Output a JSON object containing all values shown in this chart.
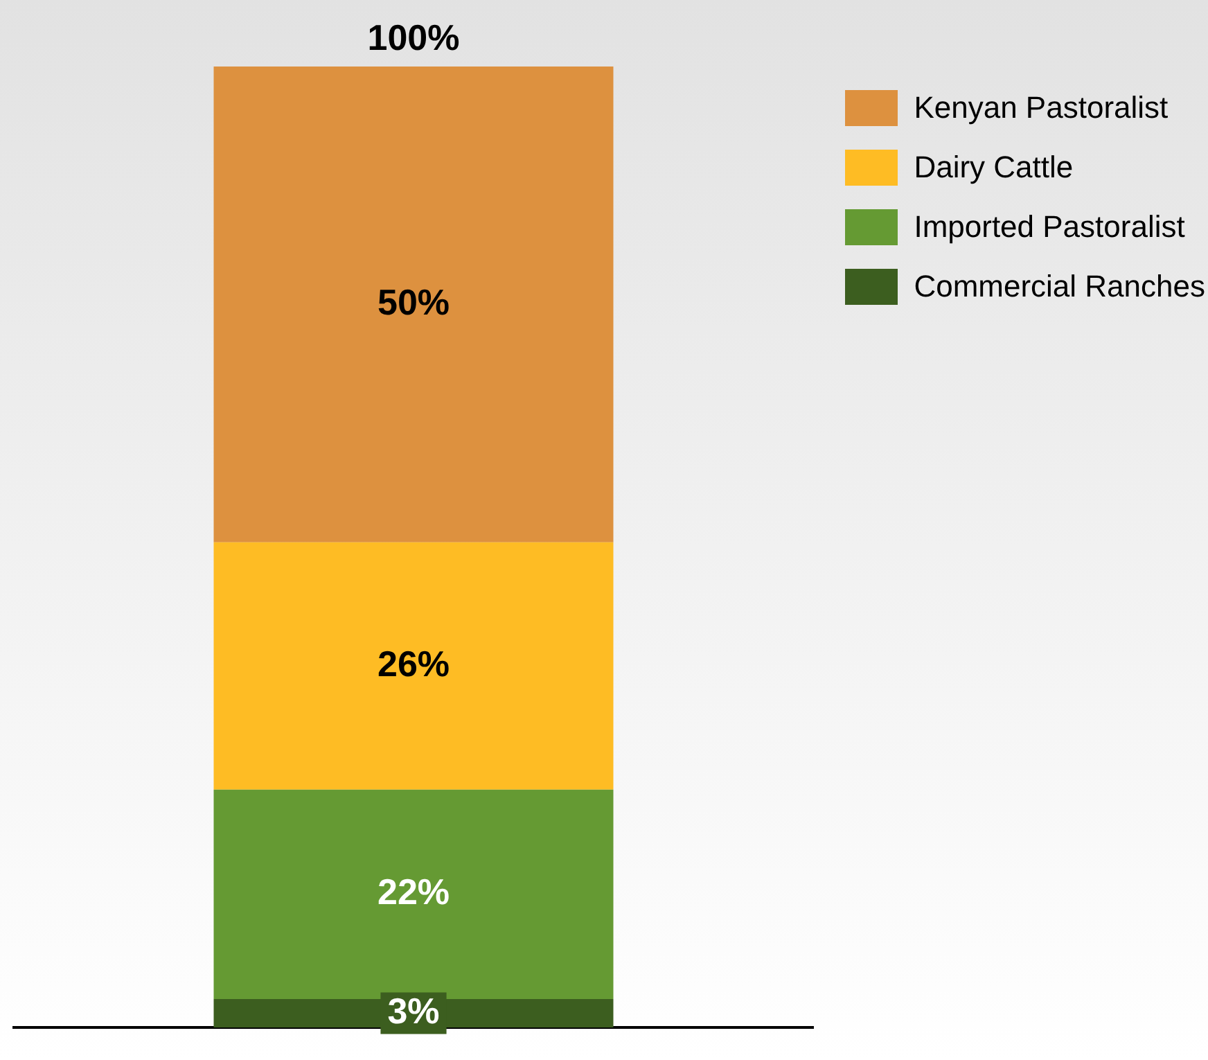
{
  "chart_data": {
    "type": "bar",
    "stacked": true,
    "categories": [
      null
    ],
    "series": [
      {
        "name": "Commercial Ranches",
        "color": "#3c5e1f",
        "values": [
          3
        ],
        "value_labels": [
          "3%"
        ]
      },
      {
        "name": "Imported Pastoralist",
        "color": "#659a33",
        "values": [
          22
        ],
        "value_labels": [
          "22%"
        ]
      },
      {
        "name": "Dairy Cattle",
        "color": "#febc24",
        "values": [
          26
        ],
        "value_labels": [
          "26%"
        ]
      },
      {
        "name": "Kenyan Pastoralist",
        "color": "#dd913f",
        "values": [
          50
        ],
        "value_labels": [
          "50%"
        ]
      }
    ],
    "grid": false,
    "legend": "top right",
    "totals": [
      "100%"
    ]
  }
}
